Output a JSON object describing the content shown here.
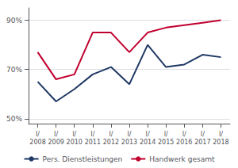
{
  "chart_data": {
    "type": "line",
    "categories": [
      "I/\n2008",
      "I/\n2009",
      "I/\n2010",
      "I/\n2011",
      "I/\n2012",
      "I/\n2013",
      "I/\n2014",
      "I/\n2015",
      "I/\n2016",
      "I/\n2017",
      "I/\n2018"
    ],
    "series": [
      {
        "name": "Pers. Dienstleistungen",
        "color": "#1f3864",
        "values": [
          65,
          57,
          62,
          68,
          71,
          64,
          80,
          71,
          72,
          76,
          75
        ]
      },
      {
        "name": "Handwerk gesamt",
        "color": "#c0002e",
        "values": [
          77,
          66,
          68,
          85,
          85,
          77,
          85,
          87,
          88,
          89,
          90
        ]
      }
    ],
    "ylim": [
      48,
      95
    ],
    "yticks": [
      {
        "value": 50,
        "label": "50%"
      },
      {
        "value": 70,
        "label": "70%"
      },
      {
        "value": 90,
        "label": "90%"
      }
    ],
    "grid": true,
    "legend": "bottom"
  }
}
